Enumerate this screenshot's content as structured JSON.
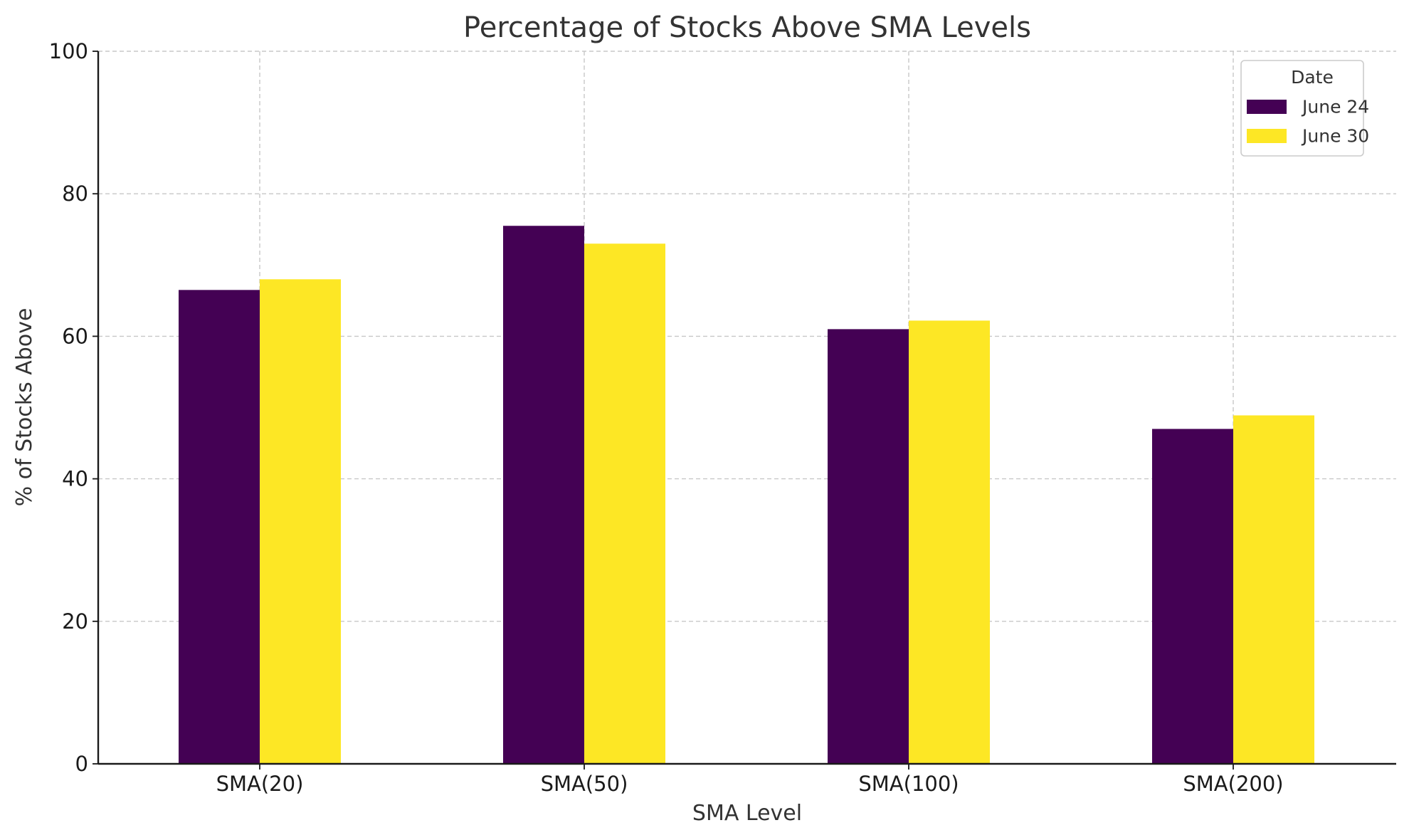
{
  "chart_data": {
    "type": "bar",
    "title": "Percentage of Stocks Above SMA Levels",
    "xlabel": "SMA Level",
    "ylabel": "% of Stocks Above",
    "categories": [
      "SMA(20)",
      "SMA(50)",
      "SMA(100)",
      "SMA(200)"
    ],
    "ylim": [
      0,
      100
    ],
    "yticks": [
      0,
      20,
      40,
      60,
      80,
      100
    ],
    "grid": true,
    "legend": {
      "title": "Date",
      "position": "top-right"
    },
    "series": [
      {
        "name": "June 24",
        "color": "#440154",
        "values": [
          66.5,
          75.5,
          61.0,
          47.0
        ]
      },
      {
        "name": "June 30",
        "color": "#fde725",
        "values": [
          68.0,
          73.0,
          62.2,
          48.9
        ]
      }
    ]
  }
}
